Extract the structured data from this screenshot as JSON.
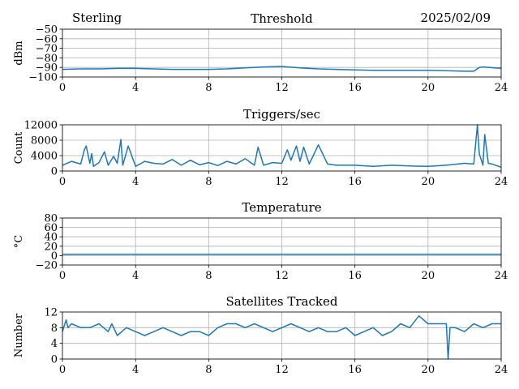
{
  "header": {
    "left": "Sterling",
    "right": "2025/02/09"
  },
  "chart_data": [
    {
      "type": "line",
      "title": "Threshold",
      "ylabel": "dBm",
      "xlim": [
        0,
        24
      ],
      "ylim": [
        -100,
        -50
      ],
      "xticks": [
        0,
        4,
        8,
        12,
        16,
        20,
        24
      ],
      "yticks": [
        -100,
        -90,
        -80,
        -70,
        -60,
        -50
      ],
      "grid": true,
      "color": "#1f77b4",
      "series": [
        {
          "x": [
            0,
            1,
            2,
            3,
            4,
            5,
            6,
            7,
            8,
            9,
            10,
            11,
            12,
            13,
            14,
            15,
            16,
            17,
            18,
            19,
            20,
            21,
            22,
            22.5,
            22.8,
            23,
            24
          ],
          "values": [
            -92,
            -91.5,
            -91.5,
            -91,
            -91,
            -91.5,
            -92,
            -92,
            -92,
            -91.5,
            -90.5,
            -89.5,
            -89,
            -90.5,
            -91.5,
            -92,
            -92.5,
            -93,
            -93,
            -93,
            -93,
            -93.5,
            -94,
            -94,
            -90,
            -89.5,
            -91
          ]
        }
      ]
    },
    {
      "type": "line",
      "title": "Triggers/sec",
      "ylabel": "Count",
      "xlim": [
        0,
        24
      ],
      "ylim": [
        0,
        12000
      ],
      "xticks": [
        0,
        4,
        8,
        12,
        16,
        20,
        24
      ],
      "yticks": [
        0,
        4000,
        8000,
        12000
      ],
      "grid": true,
      "color": "#1f77b4",
      "series": [
        {
          "x": [
            0,
            0.5,
            1,
            1.2,
            1.3,
            1.5,
            1.6,
            1.7,
            2,
            2.3,
            2.5,
            2.8,
            3,
            3.2,
            3.3,
            3.6,
            4,
            4.5,
            5,
            5.5,
            6,
            6.5,
            7,
            7.5,
            8,
            8.5,
            9,
            9.5,
            10,
            10.5,
            10.7,
            11,
            11.5,
            12,
            12.3,
            12.5,
            12.8,
            13,
            13.2,
            13.5,
            14,
            14.5,
            15,
            16,
            17,
            18,
            19,
            20,
            21,
            22,
            22.5,
            22.7,
            22.8,
            23,
            23.1,
            23.3,
            23.5,
            24
          ],
          "values": [
            1500,
            2500,
            1800,
            5500,
            6500,
            2000,
            4500,
            1200,
            2200,
            5000,
            1500,
            3800,
            2000,
            8200,
            1500,
            6500,
            1200,
            2500,
            2000,
            1800,
            3000,
            1500,
            2800,
            1600,
            2200,
            1400,
            2500,
            1800,
            3200,
            1500,
            6200,
            1500,
            2200,
            2000,
            5500,
            2800,
            6500,
            2500,
            6200,
            1800,
            6800,
            1800,
            1500,
            1500,
            1200,
            1500,
            1300,
            1200,
            1500,
            2000,
            1800,
            12000,
            4500,
            1500,
            9500,
            2000,
            1800,
            1000
          ]
        }
      ]
    },
    {
      "type": "line",
      "title": "Temperature",
      "ylabel": "°C",
      "xlim": [
        0,
        24
      ],
      "ylim": [
        -20,
        80
      ],
      "xticks": [
        0,
        4,
        8,
        12,
        16,
        20,
        24
      ],
      "yticks": [
        -20,
        0,
        20,
        40,
        60,
        80
      ],
      "grid": true,
      "color": "#1f77b4",
      "series": [
        {
          "x": [
            0,
            24
          ],
          "values": [
            3,
            3
          ]
        }
      ]
    },
    {
      "type": "line",
      "title": "Satellites Tracked",
      "ylabel": "Number",
      "xlim": [
        0,
        24
      ],
      "ylim": [
        0,
        12
      ],
      "xticks": [
        0,
        4,
        8,
        12,
        16,
        20,
        24
      ],
      "yticks": [
        0,
        4,
        8,
        12
      ],
      "grid": true,
      "color": "#1f77b4",
      "series": [
        {
          "x": [
            0,
            0.2,
            0.3,
            0.5,
            1,
            1.5,
            2,
            2.5,
            2.7,
            3,
            3.5,
            4,
            4.5,
            5,
            5.5,
            6,
            6.5,
            7,
            7.5,
            8,
            8.5,
            9,
            9.5,
            10,
            10.5,
            11,
            11.5,
            12,
            12.5,
            13,
            13.5,
            14,
            14.5,
            15,
            15.5,
            16,
            16.5,
            17,
            17.5,
            18,
            18.5,
            19,
            19.5,
            20,
            20.5,
            21,
            21.1,
            21.2,
            21.5,
            22,
            22.5,
            23,
            23.5,
            24
          ],
          "values": [
            7,
            10,
            8,
            9,
            8,
            8,
            9,
            7,
            9,
            6,
            8,
            7,
            6,
            7,
            8,
            7,
            6,
            7,
            7,
            6,
            8,
            9,
            9,
            8,
            9,
            8,
            7,
            8,
            9,
            8,
            7,
            8,
            7,
            7,
            8,
            6,
            7,
            8,
            6,
            7,
            9,
            8,
            11,
            9,
            9,
            9,
            0,
            8,
            8,
            7,
            9,
            8,
            9,
            9
          ]
        }
      ]
    }
  ]
}
